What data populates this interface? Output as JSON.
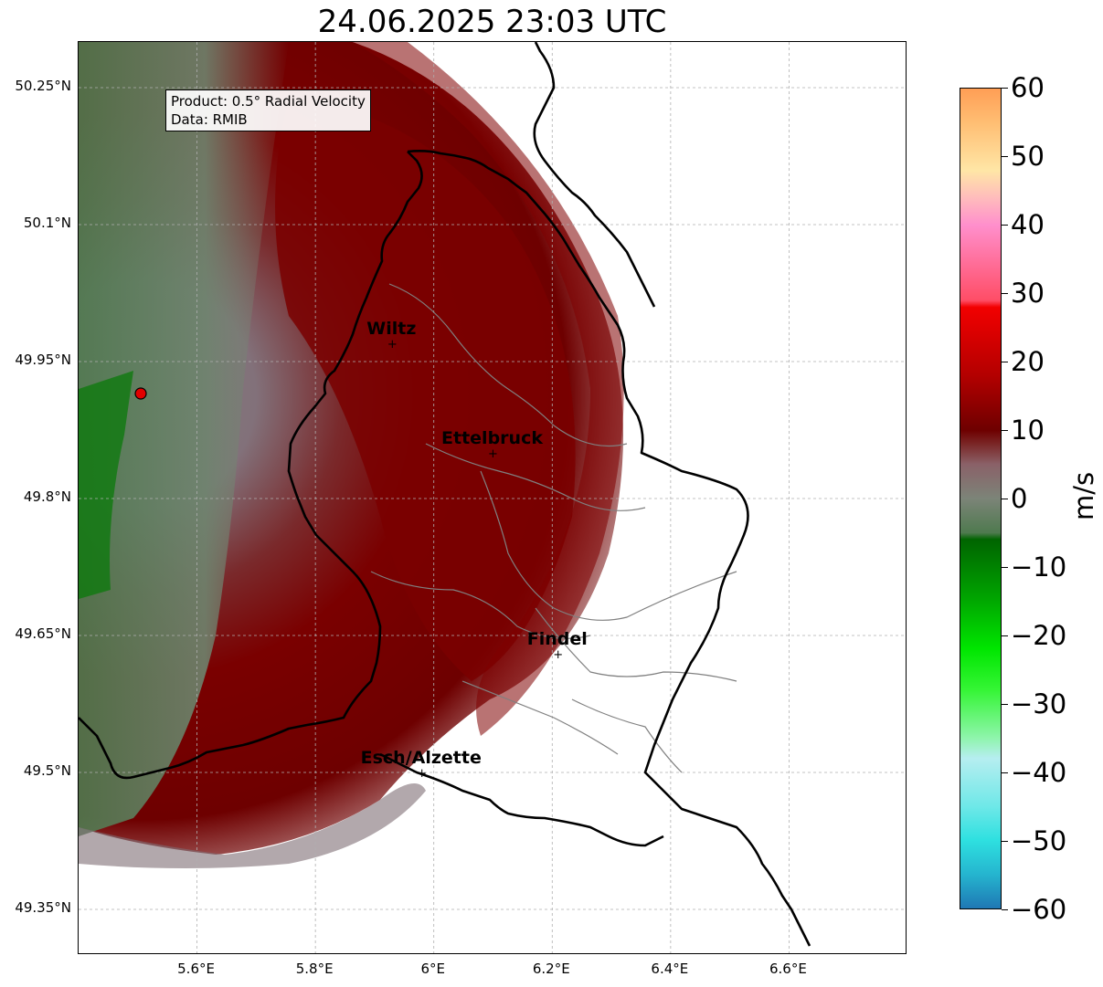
{
  "title": "24.06.2025 23:03 UTC",
  "info": {
    "product": "Product: 0.5° Radial Velocity",
    "data_source": "Data: RMIB"
  },
  "axes": {
    "lat_ticks": [
      "50.25°N",
      "50.1°N",
      "49.95°N",
      "49.8°N",
      "49.65°N",
      "49.5°N",
      "49.35°N"
    ],
    "lon_ticks": [
      "5.6°E",
      "5.8°E",
      "6°E",
      "6.2°E",
      "6.4°E",
      "6.6°E"
    ],
    "lat_values": [
      50.25,
      50.1,
      49.95,
      49.8,
      49.65,
      49.5,
      49.35
    ],
    "lon_values": [
      5.6,
      5.8,
      6.0,
      6.2,
      6.4,
      6.6
    ],
    "lon_range": [
      5.4,
      6.8
    ],
    "lat_range": [
      49.3,
      50.3
    ],
    "grid": true
  },
  "cities": [
    {
      "name": "Wiltz",
      "lon": 5.93,
      "lat": 49.97
    },
    {
      "name": "Ettelbruck",
      "lon": 6.1,
      "lat": 49.85
    },
    {
      "name": "Findel",
      "lon": 6.21,
      "lat": 49.63
    },
    {
      "name": "Esch/Alzette",
      "lon": 5.98,
      "lat": 49.5
    }
  ],
  "radar_site": {
    "lon": 5.505,
    "lat": 49.915,
    "color": "#e10000"
  },
  "colorbar": {
    "unit": "m/s",
    "min": -60,
    "max": 60,
    "ticks": [
      "60",
      "50",
      "40",
      "30",
      "20",
      "10",
      "0",
      "−10",
      "−20",
      "−30",
      "−40",
      "−50",
      "−60"
    ],
    "tick_values": [
      60,
      50,
      40,
      30,
      20,
      10,
      0,
      -10,
      -20,
      -30,
      -40,
      -50,
      -60
    ],
    "stops": [
      {
        "v": -60,
        "color": "#1f78b4"
      },
      {
        "v": -55,
        "color": "#25b5cf"
      },
      {
        "v": -50,
        "color": "#2ee0e0"
      },
      {
        "v": -45,
        "color": "#6fe8e8"
      },
      {
        "v": -38,
        "color": "#b6eef0"
      },
      {
        "v": -35,
        "color": "#8ef5ab"
      },
      {
        "v": -28,
        "color": "#35f535"
      },
      {
        "v": -22,
        "color": "#00e600"
      },
      {
        "v": -15,
        "color": "#00a800"
      },
      {
        "v": -6,
        "color": "#006400"
      },
      {
        "v": -5,
        "color": "#4f7a4f"
      },
      {
        "v": 0,
        "color": "#7c8478"
      },
      {
        "v": 5,
        "color": "#8a6168"
      },
      {
        "v": 8,
        "color": "#7a2626"
      },
      {
        "v": 10,
        "color": "#6e0000"
      },
      {
        "v": 18,
        "color": "#b30000"
      },
      {
        "v": 28,
        "color": "#f20000"
      },
      {
        "v": 29,
        "color": "#ff4d66"
      },
      {
        "v": 40,
        "color": "#ff8fcc"
      },
      {
        "v": 44,
        "color": "#ffbcbc"
      },
      {
        "v": 48,
        "color": "#ffe6a6"
      },
      {
        "v": 55,
        "color": "#ffbe73"
      },
      {
        "v": 60,
        "color": "#ff9e55"
      }
    ]
  },
  "colors": {
    "inbound": "#6b8a6b",
    "outbound": "#7a0000",
    "border": "#000000",
    "canton_border": "#808080",
    "grid": "#b0b0b0"
  }
}
